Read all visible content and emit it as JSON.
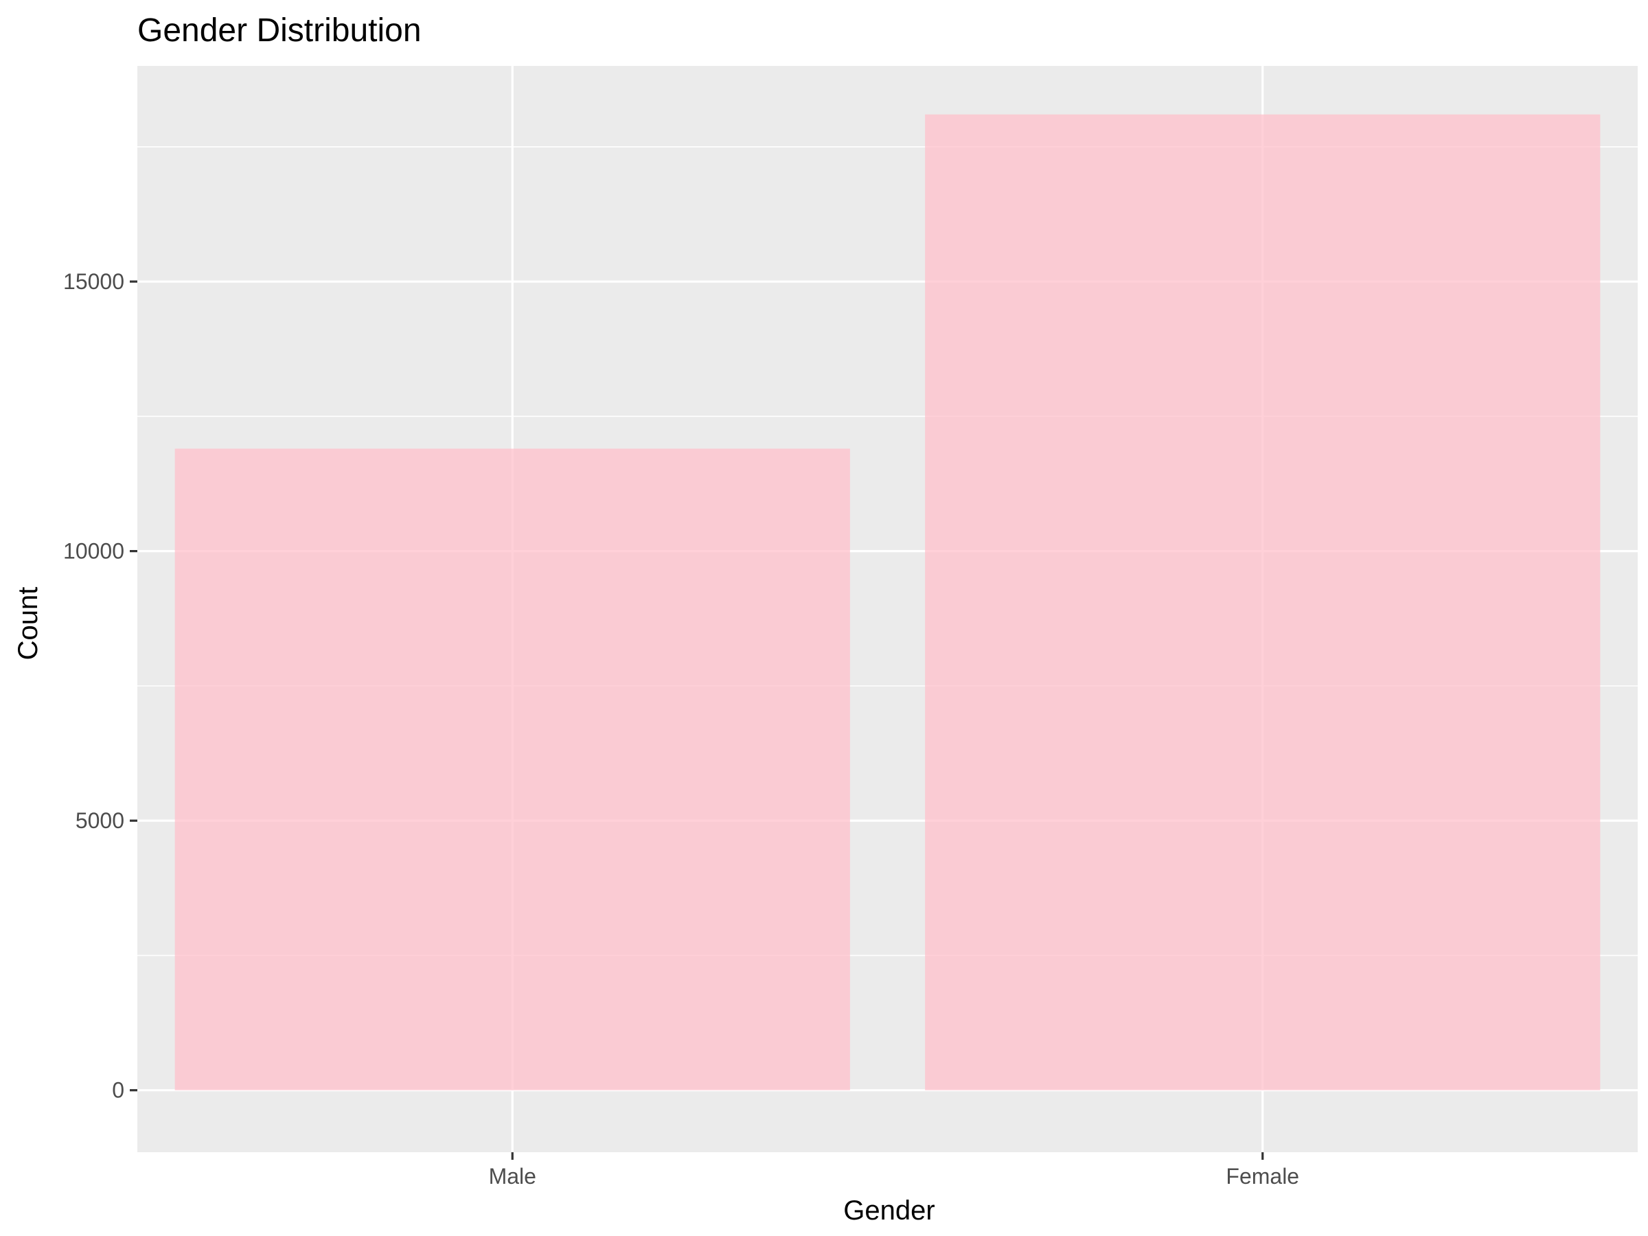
{
  "chart_data": {
    "type": "bar",
    "title": "Gender Distribution",
    "xlabel": "Gender",
    "ylabel": "Count",
    "categories": [
      "Male",
      "Female"
    ],
    "values": [
      11900,
      18100
    ],
    "ylim": [
      -1150,
      19000
    ],
    "yticks": [
      0,
      5000,
      10000,
      15000
    ],
    "y_minor_ticks": [
      2500,
      7500,
      12500,
      17500
    ],
    "grid": true,
    "legend": "none",
    "colors": {
      "bar_fill": "#FFC0CB",
      "bar_opacity": 0.75,
      "panel_background": "#EBEBEB",
      "grid": "#FFFFFF",
      "tick_label": "#4D4D4D",
      "title": "#000000"
    }
  }
}
